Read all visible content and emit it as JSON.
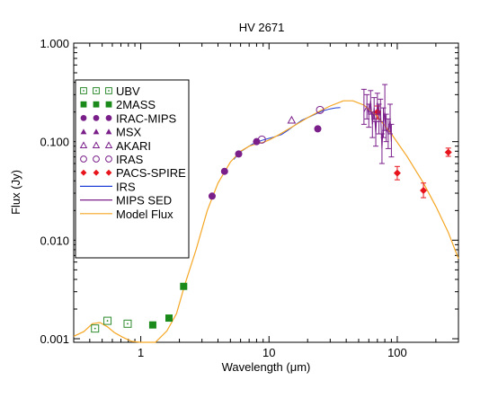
{
  "chart_data": {
    "type": "scatter",
    "title": "HV 2671",
    "xlabel": "Wavelength (μm)",
    "ylabel": "Flux (Jy)",
    "xscale": "log",
    "yscale": "log",
    "xlim": [
      0.3,
      300
    ],
    "ylim": [
      0.00092,
      1.0
    ],
    "grid": false,
    "legend_position": "upper-left",
    "x_ticks": [
      {
        "value": 1,
        "label": "1"
      },
      {
        "value": 10,
        "label": "10"
      },
      {
        "value": 100,
        "label": "100"
      }
    ],
    "y_ticks": [
      {
        "value": 0.001,
        "label": "0.001"
      },
      {
        "value": 0.01,
        "label": "0.010"
      },
      {
        "value": 0.1,
        "label": "0.100"
      },
      {
        "value": 1.0,
        "label": "1.000"
      }
    ],
    "series": [
      {
        "name": "UBV",
        "marker": "open-square-dot",
        "color": "#2e8b2e",
        "points": [
          {
            "x": 0.44,
            "y": 0.00127
          },
          {
            "x": 0.55,
            "y": 0.00152
          },
          {
            "x": 0.79,
            "y": 0.00142
          }
        ]
      },
      {
        "name": "2MASS",
        "marker": "filled-square",
        "color": "#1a8a1a",
        "points": [
          {
            "x": 1.24,
            "y": 0.00138
          },
          {
            "x": 1.66,
            "y": 0.00162
          },
          {
            "x": 2.16,
            "y": 0.0034
          }
        ]
      },
      {
        "name": "IRAC-MIPS",
        "marker": "filled-circle",
        "color": "#7a1f8a",
        "points": [
          {
            "x": 3.6,
            "y": 0.028
          },
          {
            "x": 4.5,
            "y": 0.05
          },
          {
            "x": 5.8,
            "y": 0.075
          },
          {
            "x": 8.0,
            "y": 0.1
          },
          {
            "x": 24.0,
            "y": 0.135
          }
        ]
      },
      {
        "name": "MSX",
        "marker": "filled-triangle",
        "color": "#7a1f8a",
        "points": []
      },
      {
        "name": "AKARI",
        "marker": "open-triangle",
        "color": "#7a1f8a",
        "points": [
          {
            "x": 15.0,
            "y": 0.165
          }
        ]
      },
      {
        "name": "IRAS",
        "marker": "open-circle",
        "color": "#7a1f8a",
        "points": [
          {
            "x": 8.8,
            "y": 0.105
          },
          {
            "x": 25.0,
            "y": 0.21
          }
        ]
      },
      {
        "name": "PACS-SPIRE",
        "marker": "filled-diamond",
        "color": "#e8141b",
        "points": [
          {
            "x": 70.0,
            "y": 0.2,
            "ylo": 0.17,
            "yhi": 0.23
          },
          {
            "x": 100.0,
            "y": 0.048,
            "ylo": 0.041,
            "yhi": 0.056
          },
          {
            "x": 160.0,
            "y": 0.032,
            "ylo": 0.027,
            "yhi": 0.038
          },
          {
            "x": 250.0,
            "y": 0.078,
            "ylo": 0.071,
            "yhi": 0.086
          }
        ]
      },
      {
        "name": "IRS",
        "line": true,
        "color": "#1f3fd6",
        "points": [
          {
            "x": 5.3,
            "y": 0.066
          },
          {
            "x": 6.0,
            "y": 0.079
          },
          {
            "x": 6.8,
            "y": 0.088
          },
          {
            "x": 7.5,
            "y": 0.095
          },
          {
            "x": 8.2,
            "y": 0.1
          },
          {
            "x": 9.0,
            "y": 0.104
          },
          {
            "x": 10.0,
            "y": 0.108
          },
          {
            "x": 11.0,
            "y": 0.112
          },
          {
            "x": 12.5,
            "y": 0.118
          },
          {
            "x": 14.0,
            "y": 0.13
          },
          {
            "x": 16.0,
            "y": 0.148
          },
          {
            "x": 18.0,
            "y": 0.165
          },
          {
            "x": 20.0,
            "y": 0.175
          },
          {
            "x": 23.0,
            "y": 0.19
          },
          {
            "x": 26.0,
            "y": 0.205
          },
          {
            "x": 30.0,
            "y": 0.215
          },
          {
            "x": 33.0,
            "y": 0.22
          },
          {
            "x": 36.0,
            "y": 0.222
          }
        ]
      },
      {
        "name": "MIPS SED",
        "line": true,
        "color": "#7a1f8a",
        "points": [
          {
            "x": 55,
            "y": 0.2,
            "ylo": 0.15,
            "yhi": 0.34
          },
          {
            "x": 58,
            "y": 0.23,
            "ylo": 0.17,
            "yhi": 0.3
          },
          {
            "x": 60,
            "y": 0.19,
            "ylo": 0.14,
            "yhi": 0.24
          },
          {
            "x": 62,
            "y": 0.26,
            "ylo": 0.19,
            "yhi": 0.33
          },
          {
            "x": 64,
            "y": 0.15,
            "ylo": 0.11,
            "yhi": 0.2
          },
          {
            "x": 66,
            "y": 0.22,
            "ylo": 0.17,
            "yhi": 0.28
          },
          {
            "x": 68,
            "y": 0.12,
            "ylo": 0.09,
            "yhi": 0.16
          },
          {
            "x": 70,
            "y": 0.25,
            "ylo": 0.19,
            "yhi": 0.31
          },
          {
            "x": 72,
            "y": 0.18,
            "ylo": 0.12,
            "yhi": 0.24
          },
          {
            "x": 74,
            "y": 0.21,
            "ylo": 0.16,
            "yhi": 0.27
          },
          {
            "x": 76,
            "y": 0.085,
            "ylo": 0.06,
            "yhi": 0.12
          },
          {
            "x": 78,
            "y": 0.16,
            "ylo": 0.11,
            "yhi": 0.22
          },
          {
            "x": 80,
            "y": 0.2,
            "ylo": 0.13,
            "yhi": 0.38
          },
          {
            "x": 82,
            "y": 0.14,
            "ylo": 0.1,
            "yhi": 0.19
          },
          {
            "x": 85,
            "y": 0.12,
            "ylo": 0.085,
            "yhi": 0.17
          },
          {
            "x": 88,
            "y": 0.17,
            "ylo": 0.12,
            "yhi": 0.24
          },
          {
            "x": 90,
            "y": 0.1,
            "ylo": 0.07,
            "yhi": 0.15
          }
        ]
      },
      {
        "name": "Model Flux",
        "line": true,
        "color": "#f5a623",
        "points": [
          {
            "x": 0.3,
            "y": 0.00106
          },
          {
            "x": 0.36,
            "y": 0.00118
          },
          {
            "x": 0.42,
            "y": 0.00142
          },
          {
            "x": 0.48,
            "y": 0.00146
          },
          {
            "x": 0.55,
            "y": 0.00132
          },
          {
            "x": 0.62,
            "y": 0.00116
          },
          {
            "x": 0.72,
            "y": 0.00104
          },
          {
            "x": 0.85,
            "y": 0.00094
          },
          {
            "x": 1.0,
            "y": 0.00088
          },
          {
            "x": 1.3,
            "y": 0.00088
          },
          {
            "x": 1.6,
            "y": 0.0012
          },
          {
            "x": 1.9,
            "y": 0.0018
          },
          {
            "x": 2.2,
            "y": 0.0035
          },
          {
            "x": 2.7,
            "y": 0.008
          },
          {
            "x": 3.3,
            "y": 0.02
          },
          {
            "x": 4.0,
            "y": 0.038
          },
          {
            "x": 5.0,
            "y": 0.062
          },
          {
            "x": 6.0,
            "y": 0.08
          },
          {
            "x": 7.0,
            "y": 0.09
          },
          {
            "x": 8.0,
            "y": 0.095
          },
          {
            "x": 9.0,
            "y": 0.098
          },
          {
            "x": 10.0,
            "y": 0.104
          },
          {
            "x": 12.0,
            "y": 0.118
          },
          {
            "x": 15.0,
            "y": 0.14
          },
          {
            "x": 20.0,
            "y": 0.175
          },
          {
            "x": 25.0,
            "y": 0.205
          },
          {
            "x": 30.0,
            "y": 0.23
          },
          {
            "x": 38.0,
            "y": 0.26
          },
          {
            "x": 45.0,
            "y": 0.26
          },
          {
            "x": 55.0,
            "y": 0.235
          },
          {
            "x": 70.0,
            "y": 0.18
          },
          {
            "x": 90.0,
            "y": 0.12
          },
          {
            "x": 120.0,
            "y": 0.07
          },
          {
            "x": 160.0,
            "y": 0.038
          },
          {
            "x": 200.0,
            "y": 0.022
          },
          {
            "x": 250.0,
            "y": 0.012
          },
          {
            "x": 300.0,
            "y": 0.0065
          }
        ]
      }
    ]
  }
}
